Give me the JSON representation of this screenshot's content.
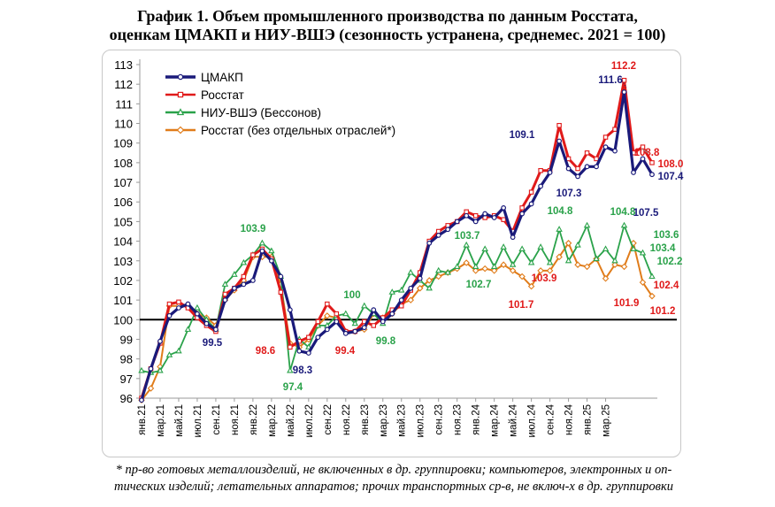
{
  "title_line1": "График 1. Объем промышленного производства по данным Росстата,",
  "title_line2": "оценкам ЦМАКП и НИУ-ВШЭ (сезонность устранена, среднемес. 2021 = 100)",
  "footnote_line1": "* пр-во готовых металлоизделий, не включенных в др. группировки; компьютеров, электронных и оп-",
  "footnote_line2": "тических изделий; летательных аппаратов; прочих транспортных ср-в, не включ-х в др. группировки",
  "chart_data": {
    "type": "line",
    "ylim": [
      96,
      113
    ],
    "yticks": [
      96,
      97,
      98,
      99,
      100,
      101,
      102,
      103,
      104,
      105,
      106,
      107,
      108,
      109,
      110,
      111,
      112,
      113
    ],
    "x_tick_labels": [
      "янв.21",
      "мар.21",
      "май.21",
      "июл.21",
      "сен.21",
      "ноя.21",
      "янв.22",
      "мар.22",
      "май.22",
      "июл.22",
      "сен.22",
      "ноя.22",
      "янв.23",
      "мар.23",
      "май.23",
      "июл.23",
      "сен.23",
      "ноя.23",
      "янв.24",
      "мар.24",
      "май.24",
      "июл.24",
      "сен.24",
      "ноя.24",
      "янв.25",
      "мар.25"
    ],
    "reference_line": 100,
    "series": [
      {
        "name": "ЦМАКП",
        "color": "#1a1a7a",
        "marker": "circle",
        "values": [
          95.9,
          97.5,
          98.9,
          100.2,
          100.6,
          100.8,
          100.3,
          99.8,
          99.5,
          101.0,
          101.6,
          101.8,
          102.0,
          103.5,
          103.0,
          102.2,
          100.5,
          98.4,
          98.3,
          99.1,
          99.5,
          99.9,
          99.3,
          99.4,
          99.6,
          100.5,
          99.9,
          100.3,
          101.0,
          101.6,
          102.1,
          103.9,
          104.3,
          104.6,
          105.0,
          105.3,
          105.0,
          105.4,
          105.2,
          105.7,
          104.2,
          105.4,
          105.9,
          106.8,
          107.5,
          109.1,
          107.7,
          107.3,
          107.8,
          107.8,
          108.8,
          108.6,
          111.6,
          107.5,
          108.2,
          107.4
        ]
      },
      {
        "name": "Росстат",
        "color": "#e01a1a",
        "marker": "square",
        "values": [
          96.0,
          97.5,
          98.8,
          100.8,
          100.9,
          100.6,
          100.1,
          99.7,
          99.4,
          101.3,
          101.6,
          102.2,
          103.3,
          103.6,
          103.1,
          101.4,
          98.6,
          98.9,
          99.1,
          99.9,
          100.8,
          100.3,
          99.4,
          99.4,
          99.9,
          99.7,
          100.1,
          100.5,
          100.7,
          101.5,
          102.4,
          104.0,
          104.5,
          104.8,
          105.0,
          105.5,
          105.3,
          105.2,
          105.3,
          105.1,
          104.5,
          105.7,
          106.5,
          107.6,
          107.6,
          109.9,
          108.2,
          107.7,
          108.5,
          108.2,
          109.3,
          109.7,
          112.2,
          108.5,
          108.8,
          108.0
        ]
      },
      {
        "name": "НИУ-ВШЭ (Бессонов)",
        "color": "#2aa24a",
        "marker": "triangle",
        "values": [
          97.4,
          97.3,
          97.4,
          98.2,
          98.4,
          99.5,
          100.6,
          100.0,
          99.5,
          101.8,
          102.3,
          102.9,
          103.3,
          103.9,
          103.5,
          102.2,
          97.4,
          99.0,
          98.6,
          99.7,
          99.7,
          100.2,
          100.3,
          99.8,
          100.7,
          100.3,
          99.8,
          101.4,
          101.5,
          102.4,
          102.0,
          101.6,
          102.5,
          102.4,
          102.7,
          103.8,
          102.7,
          103.6,
          102.7,
          103.7,
          102.8,
          103.6,
          102.9,
          103.7,
          102.9,
          104.6,
          103.0,
          103.8,
          104.8,
          103.1,
          103.6,
          103.0,
          104.8,
          103.6,
          103.4,
          102.2
        ]
      },
      {
        "name": "Росстат (без отдельных отраслей*)",
        "color": "#e07c1a",
        "marker": "diamond",
        "values": [
          95.9,
          96.5,
          97.6,
          100.7,
          100.7,
          100.7,
          100.3,
          100.1,
          99.7,
          101.0,
          101.5,
          102.0,
          103.2,
          103.2,
          103.2,
          101.8,
          98.8,
          98.6,
          99.0,
          99.7,
          100.2,
          100.1,
          99.4,
          99.4,
          99.5,
          100.3,
          100.1,
          100.3,
          100.8,
          101.0,
          101.6,
          102.0,
          102.2,
          102.4,
          102.6,
          102.9,
          102.5,
          102.6,
          102.5,
          102.8,
          102.5,
          102.2,
          101.7,
          102.5,
          102.5,
          103.2,
          103.9,
          102.8,
          102.7,
          103.1,
          102.1,
          102.8,
          102.7,
          103.9,
          101.9,
          101.2
        ]
      }
    ],
    "annotations": [
      {
        "text": "103.9",
        "color": "#2aa24a"
      },
      {
        "text": "99.5",
        "color": "#1a1a7a"
      },
      {
        "text": "98.6",
        "color": "#e01a1a"
      },
      {
        "text": "98.3",
        "color": "#1a1a7a"
      },
      {
        "text": "97.4",
        "color": "#2aa24a"
      },
      {
        "text": "100",
        "color": "#2aa24a"
      },
      {
        "text": "99.4",
        "color": "#e01a1a"
      },
      {
        "text": "99.8",
        "color": "#2aa24a"
      },
      {
        "text": "103.7",
        "color": "#2aa24a"
      },
      {
        "text": "102.7",
        "color": "#2aa24a"
      },
      {
        "text": "101.7",
        "color": "#e01a1a"
      },
      {
        "text": "109.1",
        "color": "#1a1a7a"
      },
      {
        "text": "104.8",
        "color": "#2aa24a"
      },
      {
        "text": "103.9",
        "color": "#e01a1a"
      },
      {
        "text": "107.3",
        "color": "#1a1a7a"
      },
      {
        "text": "111.6",
        "color": "#1a1a7a"
      },
      {
        "text": "112.2",
        "color": "#e01a1a"
      },
      {
        "text": "104.8",
        "color": "#2aa24a"
      },
      {
        "text": "107.5",
        "color": "#1a1a7a"
      },
      {
        "text": "108.8",
        "color": "#e01a1a"
      },
      {
        "text": "108.0",
        "color": "#e01a1a"
      },
      {
        "text": "107.4",
        "color": "#1a1a7a"
      },
      {
        "text": "103.6",
        "color": "#2aa24a"
      },
      {
        "text": "103.4",
        "color": "#2aa24a"
      },
      {
        "text": "102.2",
        "color": "#2aa24a"
      },
      {
        "text": "101.9",
        "color": "#e01a1a"
      },
      {
        "text": "102.4",
        "color": "#e01a1a"
      },
      {
        "text": "101.2",
        "color": "#e01a1a"
      }
    ]
  }
}
